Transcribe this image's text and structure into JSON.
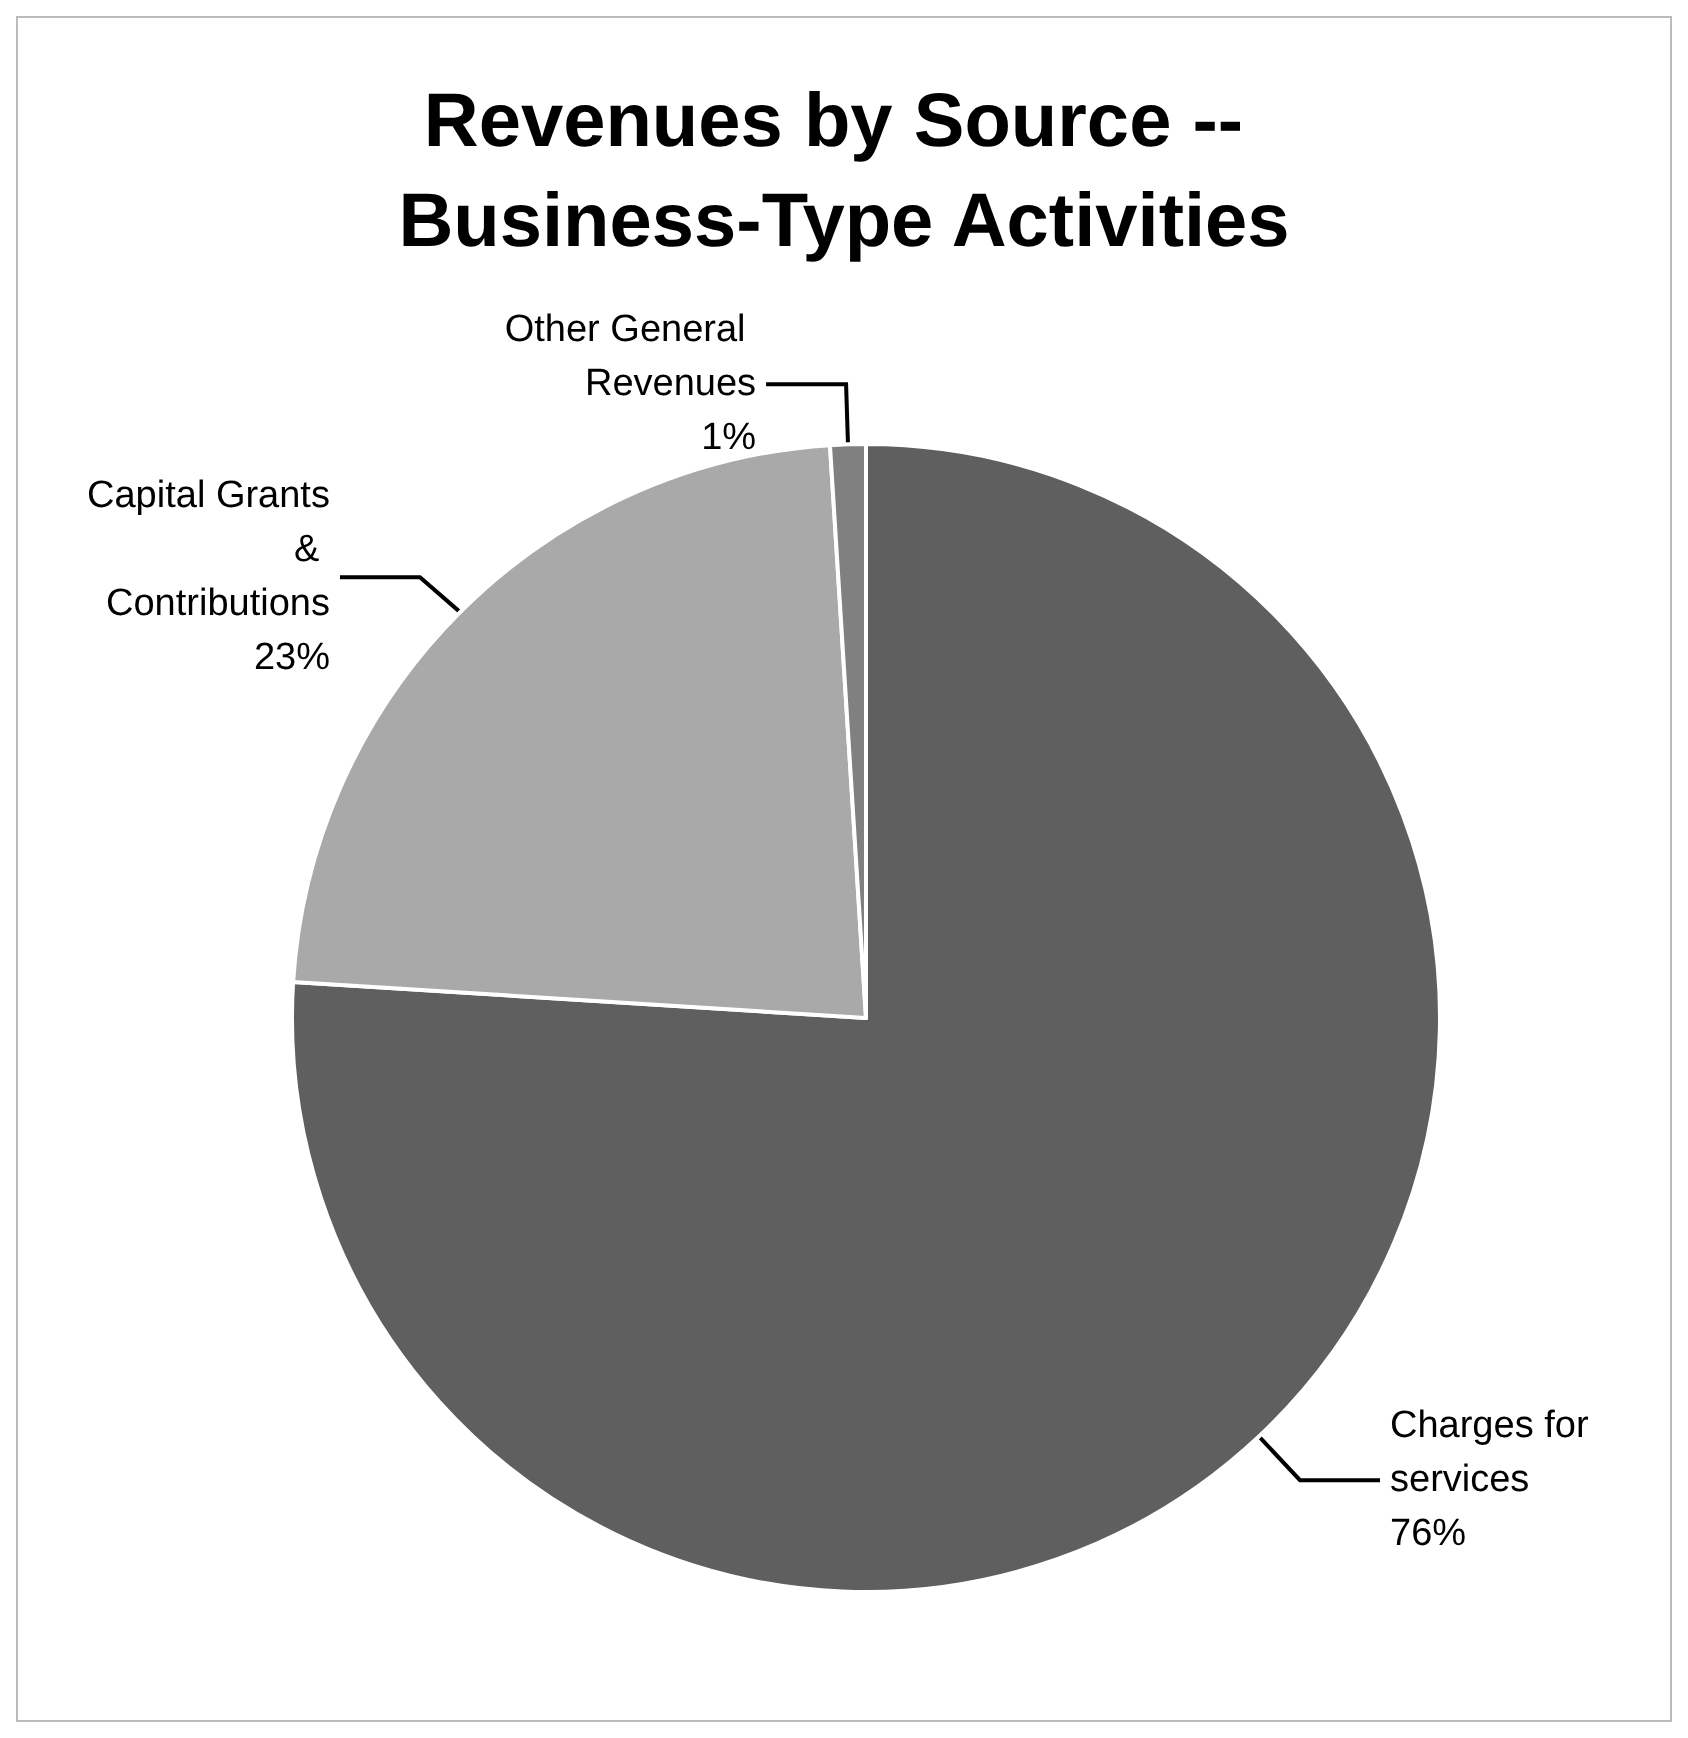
{
  "chart_data": {
    "type": "pie",
    "title": "Revenues by Source -- Business-Type Activities",
    "categories": [
      "Charges for services",
      "Capital Grants & Contributions",
      "Other General Revenues"
    ],
    "values": [
      76,
      23,
      1
    ],
    "value_labels": [
      "76%",
      "23%",
      "1%"
    ],
    "colors": [
      "#5f5f5f",
      "#a9a9a9",
      "#808080"
    ],
    "legend": false
  }
}
